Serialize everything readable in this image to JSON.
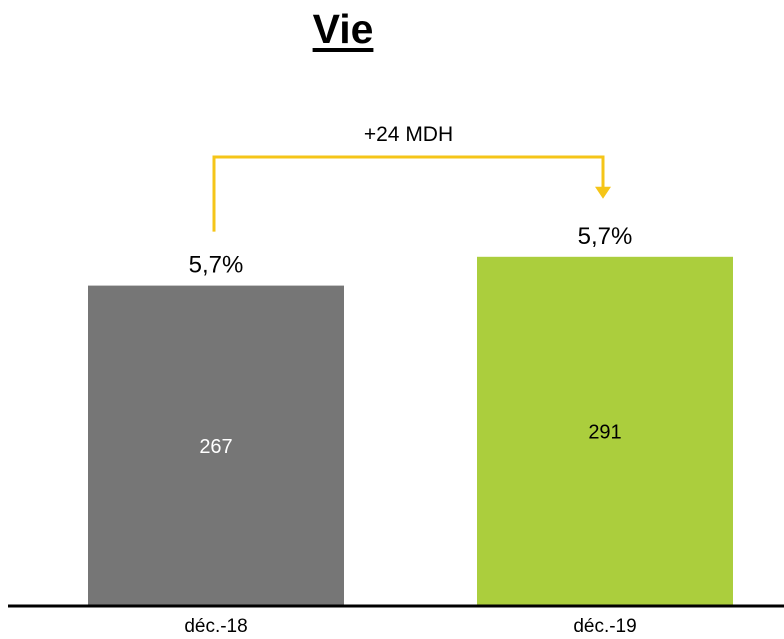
{
  "chart_data": {
    "type": "bar",
    "title": "Vie",
    "categories": [
      "déc.-18",
      "déc.-19"
    ],
    "values": [
      267,
      291
    ],
    "value_labels": [
      "267",
      "291"
    ],
    "top_labels": [
      "5,7%",
      "5,7%"
    ],
    "bar_colors": [
      "#767676",
      "#abce3d"
    ],
    "value_label_colors": [
      "#ffffff",
      "#000000"
    ],
    "change_annotation": "+24 MDH",
    "arrow_color": "#f5c518",
    "axis_color": "#000000",
    "xlabel": "",
    "ylabel": "",
    "grid": false,
    "legend": "none"
  }
}
